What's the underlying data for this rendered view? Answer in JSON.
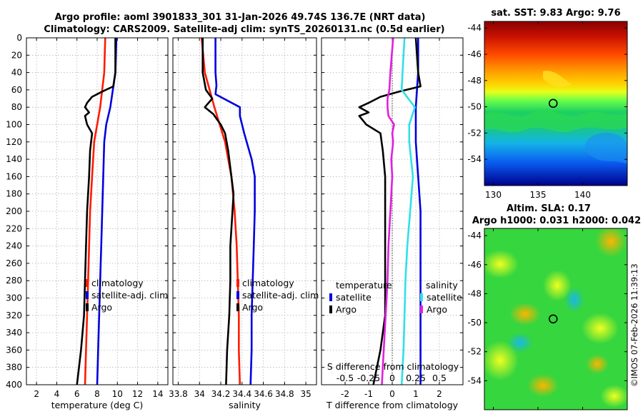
{
  "figure": {
    "title_line1": "Argo profile: aoml 3901833_301 31-Jan-2026 49.74S 136.7E (NRT data)",
    "title_line2": "Climatology: CARS2009. Satellite-adj clim: synTS_20260131.nc (0.5d earlier)",
    "watermark": "©IMOS 07-Feb-2026 11:39:13"
  },
  "colors": {
    "argo": "#000000",
    "climatology": "#ff1a00",
    "satellite": "#0000e0",
    "sal_diff": "#e020e0",
    "sal_sat_diff": "#30e0e8"
  },
  "chart_data": [
    {
      "id": "temperature",
      "type": "line",
      "xlabel": "temperature (deg C)",
      "xlim": [
        1,
        15
      ],
      "xticks": [
        "2",
        "4",
        "6",
        "8",
        "10",
        "12",
        "14"
      ],
      "ylim": [
        0,
        400
      ],
      "yticks": [
        "0",
        "20",
        "40",
        "60",
        "80",
        "100",
        "120",
        "140",
        "160",
        "180",
        "200",
        "220",
        "240",
        "260",
        "280",
        "300",
        "320",
        "340",
        "360",
        "380",
        "400"
      ],
      "legend": [
        "climatology",
        "satellite-adj. clim",
        "Argo"
      ],
      "series": [
        {
          "name": "climatology",
          "color_key": "climatology",
          "depth": [
            0,
            40,
            80,
            120,
            160,
            200,
            240,
            280,
            320,
            360,
            400
          ],
          "values": [
            8.8,
            8.7,
            8.3,
            7.7,
            7.5,
            7.3,
            7.2,
            7.1,
            7.0,
            6.9,
            6.8
          ]
        },
        {
          "name": "satellite-adj. clim",
          "color_key": "satellite",
          "depth": [
            0,
            40,
            80,
            100,
            120,
            160,
            200,
            240,
            280,
            320,
            360,
            400
          ],
          "values": [
            9.9,
            9.8,
            9.3,
            8.9,
            8.7,
            8.6,
            8.5,
            8.4,
            8.3,
            8.2,
            8.1,
            8.0
          ]
        },
        {
          "name": "Argo",
          "color_key": "argo",
          "depth": [
            0,
            40,
            56,
            62,
            68,
            75,
            80,
            86,
            90,
            100,
            110,
            130,
            160,
            200,
            240,
            280,
            320,
            360,
            400
          ],
          "values": [
            9.8,
            9.8,
            9.6,
            8.5,
            7.5,
            7.0,
            6.8,
            7.2,
            6.8,
            7.0,
            7.5,
            7.3,
            7.2,
            7.0,
            6.9,
            6.8,
            6.7,
            6.4,
            6.0
          ]
        }
      ]
    },
    {
      "id": "salinity",
      "type": "line",
      "xlabel": "salinity",
      "xlim": [
        33.75,
        35.1
      ],
      "xticks": [
        "33.8",
        "34",
        "34.2",
        "34.4",
        "34.6",
        "34.8",
        "35"
      ],
      "ylim": [
        0,
        400
      ],
      "legend": [
        "climatology",
        "satellite-adj. clim",
        "Argo"
      ],
      "series": [
        {
          "name": "climatology",
          "color_key": "climatology",
          "depth": [
            0,
            40,
            80,
            120,
            160,
            200,
            240,
            280,
            320,
            360,
            400
          ],
          "values": [
            34.02,
            34.05,
            34.14,
            34.24,
            34.3,
            34.33,
            34.35,
            34.36,
            34.37,
            34.37,
            34.38
          ]
        },
        {
          "name": "satellite-adj. clim",
          "color_key": "satellite",
          "depth": [
            0,
            40,
            55,
            65,
            80,
            90,
            110,
            140,
            160,
            200,
            240,
            280,
            320,
            360,
            400
          ],
          "values": [
            34.15,
            34.15,
            34.16,
            34.15,
            34.38,
            34.38,
            34.42,
            34.49,
            34.52,
            34.52,
            34.51,
            34.5,
            34.49,
            34.49,
            34.48
          ]
        },
        {
          "name": "Argo",
          "color_key": "argo",
          "depth": [
            0,
            40,
            60,
            70,
            80,
            88,
            95,
            100,
            110,
            130,
            160,
            180,
            200,
            240,
            280,
            320,
            360,
            400
          ],
          "values": [
            34.03,
            34.03,
            34.06,
            34.12,
            34.05,
            34.13,
            34.17,
            34.2,
            34.24,
            34.27,
            34.3,
            34.32,
            34.31,
            34.29,
            34.29,
            34.28,
            34.26,
            34.25
          ]
        }
      ]
    },
    {
      "id": "difference",
      "type": "line",
      "xlabel": "T difference from climatology",
      "xlim": [
        -3,
        3
      ],
      "xticks": [
        "-2",
        "-1",
        "0",
        "1",
        "2"
      ],
      "top_label": "S difference from climatology",
      "top_ticks": [
        "-0.5",
        "-0.25",
        "0",
        "0.25",
        "0.5"
      ],
      "ylim": [
        0,
        400
      ],
      "legend_left_title": "temperature",
      "legend_right_title": "salinity",
      "legend": [
        "satellite",
        "Argo",
        "satellite",
        "Argo"
      ],
      "series": [
        {
          "name": "temperature satellite",
          "color_key": "satellite",
          "depth": [
            0,
            40,
            80,
            120,
            160,
            200,
            240,
            280,
            320,
            360,
            400
          ],
          "values": [
            1.1,
            1.1,
            1.0,
            1.0,
            1.1,
            1.2,
            1.2,
            1.2,
            1.2,
            1.2,
            1.2
          ]
        },
        {
          "name": "temperature Argo",
          "color_key": "argo",
          "depth": [
            0,
            40,
            56,
            62,
            68,
            75,
            80,
            86,
            90,
            100,
            110,
            130,
            160,
            200,
            240,
            280,
            320,
            360,
            400
          ],
          "values": [
            1.0,
            1.1,
            1.2,
            0.3,
            -0.5,
            -1.0,
            -1.4,
            -1.0,
            -1.4,
            -1.1,
            -0.5,
            -0.4,
            -0.3,
            -0.3,
            -0.3,
            -0.3,
            -0.3,
            -0.5,
            -0.8
          ]
        },
        {
          "name": "salinity satellite",
          "color_key": "sal_sat_diff",
          "depth": [
            0,
            20,
            40,
            60,
            80,
            100,
            120,
            160,
            200,
            240,
            280,
            320,
            360,
            400
          ],
          "values": [
            0.13,
            0.12,
            0.11,
            0.1,
            0.24,
            0.18,
            0.18,
            0.22,
            0.19,
            0.16,
            0.14,
            0.13,
            0.12,
            0.1
          ]
        },
        {
          "name": "salinity Argo",
          "color_key": "sal_diff",
          "depth": [
            0,
            40,
            60,
            70,
            80,
            90,
            100,
            110,
            120,
            140,
            160,
            200,
            240,
            280,
            320,
            360,
            400
          ],
          "values": [
            0.01,
            -0.02,
            -0.03,
            -0.05,
            -0.05,
            -0.04,
            0.02,
            0.0,
            0.01,
            -0.01,
            0.0,
            -0.02,
            -0.04,
            -0.05,
            -0.07,
            -0.09,
            -0.11
          ]
        }
      ]
    },
    {
      "id": "sst_map",
      "type": "heatmap",
      "title": "sat. SST: 9.83 Argo: 9.76",
      "xlim": [
        129,
        145
      ],
      "ylim": [
        -56,
        -43.5
      ],
      "xticks": [
        "130",
        "135",
        "140"
      ],
      "yticks": [
        "-44",
        "-46",
        "-48",
        "-50",
        "-52",
        "-54"
      ],
      "marker": {
        "lon": 136.7,
        "lat": -49.74
      }
    },
    {
      "id": "sla_map",
      "type": "heatmap",
      "title_line1": "Altim. SLA: 0.17",
      "title_line2": "Argo h1000: 0.031 h2000: 0.042",
      "xlim": [
        129,
        145
      ],
      "ylim": [
        -56,
        -43.5
      ],
      "xticks": [
        "130",
        "135",
        "140"
      ],
      "yticks": [
        "-44",
        "-46",
        "-48",
        "-50",
        "-52",
        "-54"
      ],
      "marker": {
        "lon": 136.7,
        "lat": -49.74
      }
    }
  ]
}
